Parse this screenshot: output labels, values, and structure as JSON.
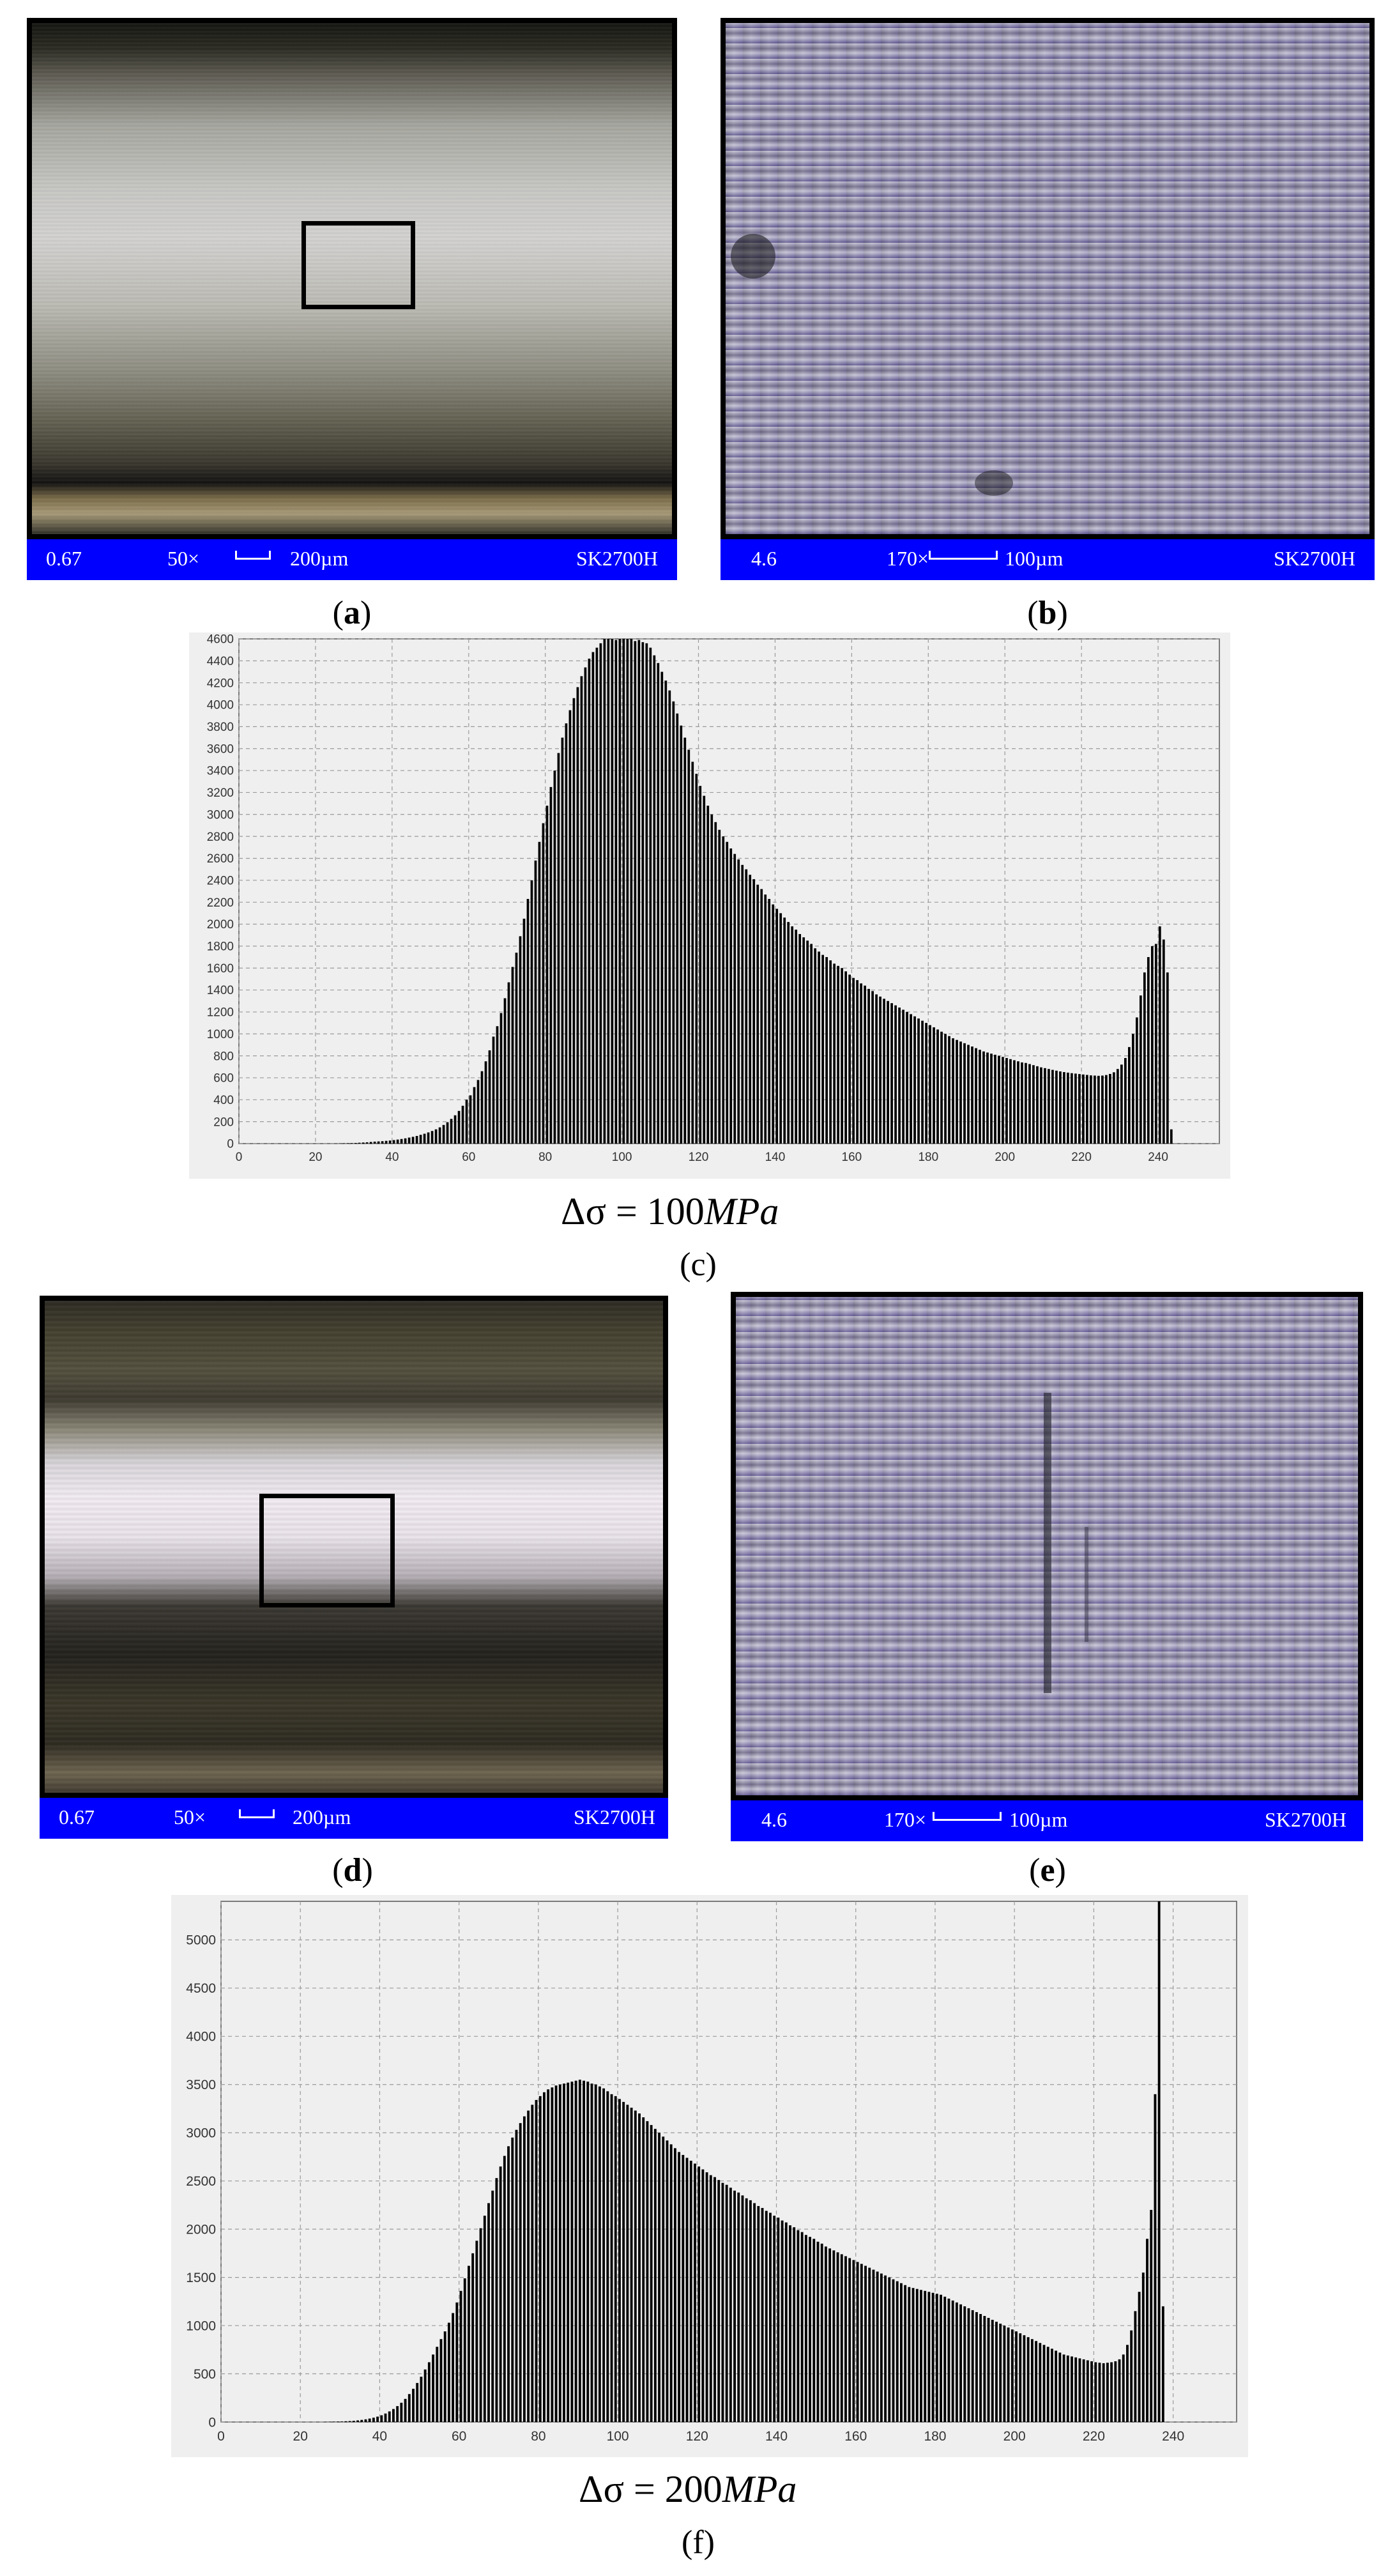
{
  "panels": {
    "a": {
      "caption": "a",
      "bar": {
        "value": "0.67",
        "magnification": "50×",
        "scale": "200µm",
        "device": "SK2700H"
      }
    },
    "b": {
      "caption": "b",
      "bar": {
        "value": "4.6",
        "magnification": "170×",
        "scale": "100µm",
        "device": "SK2700H"
      }
    },
    "c": {
      "caption": "c",
      "stress_label": {
        "delta": "Δσ",
        "equals": " = ",
        "number": "100",
        "unit": "MPa"
      }
    },
    "d": {
      "caption": "d",
      "bar": {
        "value": "0.67",
        "magnification": "50×",
        "scale": "200µm",
        "device": "SK2700H"
      }
    },
    "e": {
      "caption": "e",
      "bar": {
        "value": "4.6",
        "magnification": "170×",
        "scale": "100µm",
        "device": "SK2700H"
      }
    },
    "f": {
      "caption": "f",
      "stress_label": {
        "delta": "Δσ",
        "equals": " = ",
        "number": "200",
        "unit": "MPa"
      }
    }
  },
  "colors": {
    "info_bar": "#0000ff",
    "chart_background": "#efefef",
    "bars": "#000000",
    "grid": "#9a9a9a"
  },
  "chart_data": [
    {
      "type": "bar",
      "panel": "c",
      "title": "",
      "xlabel": "",
      "ylabel": "",
      "xlim": [
        0,
        256
      ],
      "ylim": [
        0,
        4600
      ],
      "xticks": [
        0,
        20,
        40,
        60,
        80,
        100,
        120,
        140,
        160,
        180,
        200,
        220,
        240
      ],
      "yticks": [
        0,
        200,
        400,
        600,
        800,
        1000,
        1200,
        1400,
        1600,
        1800,
        2000,
        2200,
        2400,
        2600,
        2800,
        3000,
        3200,
        3400,
        3600,
        3800,
        4000,
        4200,
        4400,
        4600
      ],
      "grid": true,
      "x_start": 0,
      "values": [
        0,
        0,
        0,
        0,
        0,
        0,
        0,
        0,
        0,
        0,
        0,
        0,
        0,
        0,
        0,
        0,
        0,
        0,
        0,
        0,
        0,
        0,
        0,
        0,
        0,
        0,
        2,
        3,
        4,
        5,
        6,
        8,
        10,
        12,
        15,
        18,
        20,
        22,
        25,
        28,
        32,
        37,
        42,
        48,
        55,
        62,
        70,
        80,
        90,
        102,
        115,
        130,
        148,
        170,
        195,
        225,
        258,
        298,
        345,
        400,
        440,
        515,
        580,
        660,
        750,
        850,
        975,
        1070,
        1190,
        1325,
        1470,
        1610,
        1740,
        1890,
        2050,
        2230,
        2400,
        2580,
        2750,
        2920,
        3080,
        3250,
        3400,
        3560,
        3700,
        3830,
        3950,
        4060,
        4160,
        4260,
        4340,
        4420,
        4480,
        4520,
        4560,
        4600,
        4620,
        4600,
        4590,
        4610,
        4640,
        4600,
        4620,
        4580,
        4590,
        4570,
        4560,
        4520,
        4450,
        4380,
        4300,
        4220,
        4130,
        4030,
        3920,
        3810,
        3700,
        3590,
        3480,
        3370,
        3260,
        3170,
        3080,
        3000,
        2930,
        2860,
        2800,
        2750,
        2690,
        2640,
        2590,
        2540,
        2500,
        2450,
        2410,
        2360,
        2320,
        2270,
        2230,
        2180,
        2140,
        2100,
        2060,
        2020,
        1980,
        1950,
        1910,
        1880,
        1850,
        1820,
        1780,
        1750,
        1720,
        1700,
        1670,
        1640,
        1620,
        1600,
        1570,
        1540,
        1510,
        1490,
        1460,
        1440,
        1410,
        1390,
        1360,
        1340,
        1320,
        1300,
        1280,
        1260,
        1240,
        1220,
        1200,
        1180,
        1160,
        1140,
        1120,
        1100,
        1080,
        1060,
        1040,
        1020,
        1000,
        980,
        960,
        945,
        930,
        915,
        900,
        885,
        870,
        855,
        840,
        830,
        820,
        810,
        800,
        790,
        780,
        770,
        760,
        750,
        740,
        735,
        725,
        715,
        705,
        695,
        688,
        680,
        672,
        665,
        658,
        652,
        647,
        642,
        638,
        634,
        630,
        626,
        622,
        620,
        618,
        620,
        625,
        635,
        650,
        680,
        720,
        780,
        880,
        1000,
        1150,
        1350,
        1560,
        1700,
        1800,
        1820,
        1980,
        1860,
        1560,
        130
      ],
      "note_values_estimated": true
    },
    {
      "type": "bar",
      "panel": "f",
      "title": "",
      "xlabel": "",
      "ylabel": "",
      "xlim": [
        0,
        256
      ],
      "ylim": [
        0,
        5400
      ],
      "xticks": [
        0,
        20,
        40,
        60,
        80,
        100,
        120,
        140,
        160,
        180,
        200,
        220,
        240
      ],
      "yticks": [
        0,
        500,
        1000,
        1500,
        2000,
        2500,
        3000,
        3500,
        4000,
        4500,
        5000
      ],
      "grid": true,
      "x_start": 0,
      "values": [
        0,
        0,
        0,
        0,
        0,
        0,
        0,
        0,
        0,
        0,
        0,
        0,
        0,
        0,
        0,
        0,
        0,
        0,
        0,
        0,
        0,
        0,
        0,
        0,
        0,
        0,
        2,
        3,
        4,
        5,
        6,
        8,
        10,
        13,
        17,
        22,
        28,
        36,
        45,
        56,
        70,
        88,
        110,
        135,
        165,
        200,
        240,
        290,
        345,
        405,
        470,
        545,
        620,
        700,
        780,
        860,
        940,
        1030,
        1130,
        1240,
        1360,
        1490,
        1620,
        1750,
        1880,
        2010,
        2140,
        2270,
        2400,
        2530,
        2650,
        2760,
        2860,
        2950,
        3030,
        3100,
        3170,
        3230,
        3290,
        3340,
        3380,
        3420,
        3450,
        3470,
        3490,
        3500,
        3510,
        3520,
        3530,
        3540,
        3550,
        3540,
        3530,
        3510,
        3500,
        3480,
        3460,
        3430,
        3400,
        3380,
        3350,
        3320,
        3290,
        3260,
        3230,
        3200,
        3160,
        3120,
        3080,
        3040,
        3000,
        2960,
        2920,
        2880,
        2840,
        2800,
        2770,
        2740,
        2710,
        2680,
        2650,
        2620,
        2590,
        2560,
        2540,
        2510,
        2480,
        2460,
        2430,
        2400,
        2380,
        2350,
        2320,
        2300,
        2270,
        2240,
        2220,
        2190,
        2170,
        2140,
        2120,
        2090,
        2070,
        2040,
        2020,
        1990,
        1970,
        1940,
        1920,
        1900,
        1870,
        1850,
        1820,
        1800,
        1780,
        1760,
        1740,
        1720,
        1700,
        1680,
        1660,
        1640,
        1620,
        1600,
        1580,
        1560,
        1540,
        1520,
        1500,
        1480,
        1460,
        1440,
        1420,
        1400,
        1390,
        1380,
        1370,
        1360,
        1350,
        1340,
        1330,
        1320,
        1300,
        1280,
        1260,
        1240,
        1220,
        1200,
        1180,
        1160,
        1140,
        1120,
        1100,
        1080,
        1060,
        1040,
        1020,
        1000,
        980,
        960,
        940,
        920,
        900,
        880,
        860,
        840,
        820,
        800,
        780,
        760,
        740,
        720,
        700,
        690,
        680,
        670,
        660,
        650,
        640,
        630,
        620,
        615,
        610,
        615,
        620,
        630,
        650,
        700,
        800,
        950,
        1150,
        1350,
        1550,
        1900,
        2200,
        3400,
        5400,
        1200
      ]
    }
  ]
}
